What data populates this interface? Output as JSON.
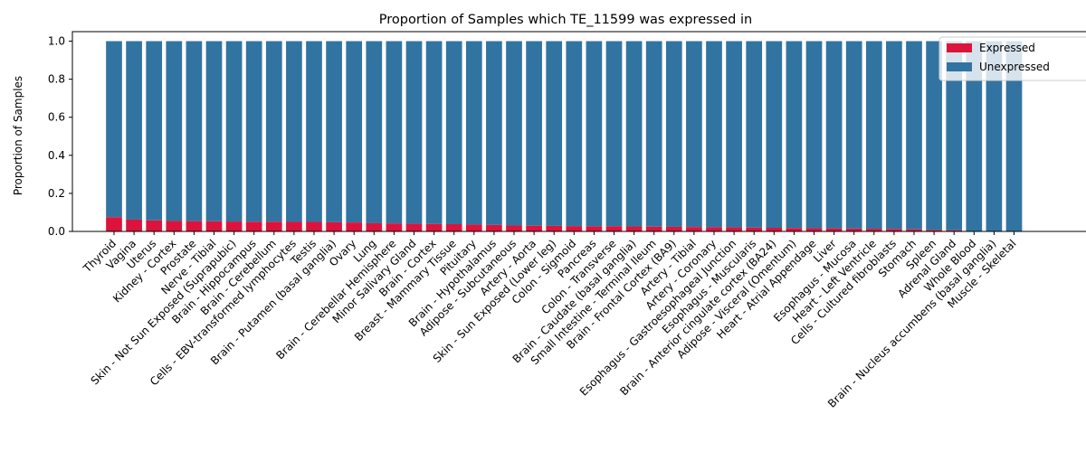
{
  "chart_data": {
    "type": "bar",
    "stacked": true,
    "title": "Proportion of Samples which TE_11599 was expressed in",
    "xlabel": "",
    "ylabel": "Proportion of Samples",
    "ylim": [
      0,
      1.05
    ],
    "yticks": [
      "0.0",
      "0.2",
      "0.4",
      "0.6",
      "0.8",
      "1.0"
    ],
    "ytick_values": [
      0,
      0.2,
      0.4,
      0.6,
      0.8,
      1.0
    ],
    "grid": false,
    "legend_position": "top-right",
    "categories": [
      "Thyroid",
      "Vagina",
      "Uterus",
      "Kidney - Cortex",
      "Prostate",
      "Nerve - Tibial",
      "Skin - Not Sun Exposed (Suprapubic)",
      "Brain - Hippocampus",
      "Brain - Cerebellum",
      "Cells - EBV-transformed lymphocytes",
      "Testis",
      "Brain - Putamen (basal ganglia)",
      "Ovary",
      "Lung",
      "Brain - Cerebellar Hemisphere",
      "Minor Salivary Gland",
      "Brain - Cortex",
      "Breast - Mammary Tissue",
      "Pituitary",
      "Brain - Hypothalamus",
      "Adipose - Subcutaneous",
      "Artery - Aorta",
      "Skin - Sun Exposed (Lower leg)",
      "Colon - Sigmoid",
      "Pancreas",
      "Colon - Transverse",
      "Brain - Caudate (basal ganglia)",
      "Small Intestine - Terminal Ileum",
      "Brain - Frontal Cortex (BA9)",
      "Artery - Tibial",
      "Artery - Coronary",
      "Esophagus - Gastroesophageal Junction",
      "Esophagus - Muscularis",
      "Brain - Anterior cingulate cortex (BA24)",
      "Adipose - Visceral (Omentum)",
      "Heart - Atrial Appendage",
      "Liver",
      "Esophagus - Mucosa",
      "Heart - Left Ventricle",
      "Cells - Cultured fibroblasts",
      "Stomach",
      "Spleen",
      "Adrenal Gland",
      "Whole Blood",
      "Brain - Nucleus accumbens (basal ganglia)",
      "Muscle - Skeletal"
    ],
    "series": [
      {
        "name": "Expressed",
        "color": "#dc143c",
        "values": [
          0.075,
          0.062,
          0.058,
          0.055,
          0.054,
          0.053,
          0.052,
          0.051,
          0.051,
          0.05,
          0.05,
          0.048,
          0.047,
          0.043,
          0.042,
          0.04,
          0.039,
          0.038,
          0.036,
          0.034,
          0.031,
          0.03,
          0.029,
          0.028,
          0.027,
          0.027,
          0.026,
          0.025,
          0.024,
          0.023,
          0.022,
          0.021,
          0.02,
          0.019,
          0.018,
          0.017,
          0.016,
          0.015,
          0.014,
          0.013,
          0.011,
          0.008,
          0.006,
          0.002,
          0.0,
          0.0
        ]
      },
      {
        "name": "Unexpressed",
        "color": "#3274a1",
        "values": [
          0.925,
          0.938,
          0.942,
          0.945,
          0.946,
          0.947,
          0.948,
          0.949,
          0.949,
          0.95,
          0.95,
          0.952,
          0.953,
          0.957,
          0.958,
          0.96,
          0.961,
          0.962,
          0.964,
          0.966,
          0.969,
          0.97,
          0.971,
          0.972,
          0.973,
          0.973,
          0.974,
          0.975,
          0.976,
          0.977,
          0.978,
          0.979,
          0.98,
          0.981,
          0.982,
          0.983,
          0.984,
          0.985,
          0.986,
          0.987,
          0.989,
          0.992,
          0.994,
          0.998,
          1.0,
          1.0
        ]
      }
    ]
  }
}
